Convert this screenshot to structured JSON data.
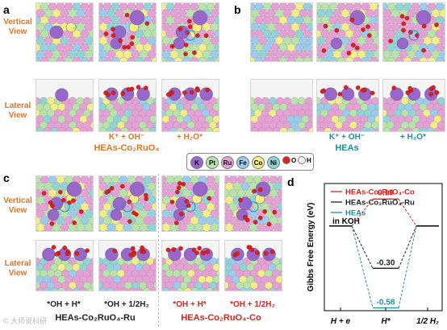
{
  "panels": {
    "a": "a",
    "b": "b",
    "c": "c",
    "d": "d"
  },
  "views": {
    "vertical": "Vertical\nView",
    "lateral": "Lateral\nView"
  },
  "panel_a": {
    "step2": "K⁺ + OH⁻",
    "step3": "+ H₂O*",
    "system": "HEAs-Co₂RuO₄"
  },
  "panel_b": {
    "step2": "K⁺ + OH⁻",
    "step3": "+ H₂O*",
    "system": "HEAs"
  },
  "legend": {
    "items": [
      {
        "symbol": "K",
        "label": "K",
        "color": "#9966cc"
      },
      {
        "symbol": "Pt",
        "label": "Pt",
        "color": "#b7e4a9"
      },
      {
        "symbol": "Ru",
        "label": "Ru",
        "color": "#e6a0d6"
      },
      {
        "symbol": "Fe",
        "label": "Fe",
        "color": "#99ccee"
      },
      {
        "symbol": "Co",
        "label": "Co",
        "color": "#f3ef86"
      },
      {
        "symbol": "Ni",
        "label": "Ni",
        "color": "#8fd5d8"
      },
      {
        "symbol": "O",
        "label": "O",
        "color": "#e02020"
      },
      {
        "symbol": "H",
        "label": "H",
        "color": "#f2f2f2"
      }
    ]
  },
  "panel_c": {
    "cap1": "*OH + H*",
    "cap2": "*OH + 1/2H₂",
    "cap3": "*OH + H*",
    "cap4": "*OH + 1/2H₂",
    "system_left": "HEAs-Co₂RuO₄-Ru",
    "system_right": "HEAs-Co₂RuO₄-Co"
  },
  "watermark": "© 大师说科研",
  "colors": {
    "orange": "#e8731c",
    "teal": "#1b8f9c",
    "red": "#e0201b",
    "black": "#222222",
    "pink": "#e6a0d6",
    "green": "#b7e4a9",
    "blue": "#99ccee",
    "yellow": "#f3ef86",
    "cyan": "#8fd5d8",
    "purple": "#9966cc"
  },
  "chart_data": {
    "type": "line",
    "ylabel": "Gibbs Free Energy (eV)",
    "categories": [
      "H + e",
      "H*",
      "1/2 H₂"
    ],
    "ylim": [
      -0.6,
      0.3
    ],
    "series": [
      {
        "name": "HEAs-Co₂RuO₄-Co",
        "values": [
          0,
          0.19,
          0
        ],
        "color": "#e0201b",
        "label": "0.19"
      },
      {
        "name": "HEAs-Co₂RuO₄-Ru",
        "values": [
          0,
          -0.3,
          0
        ],
        "color": "#222222",
        "label": "-0.30"
      },
      {
        "name": "HEAs",
        "values": [
          0,
          -0.58,
          0
        ],
        "color": "#1b8f9c",
        "label": "-0.58"
      }
    ],
    "annotation": "in KOH",
    "legend_position": "top-left"
  }
}
